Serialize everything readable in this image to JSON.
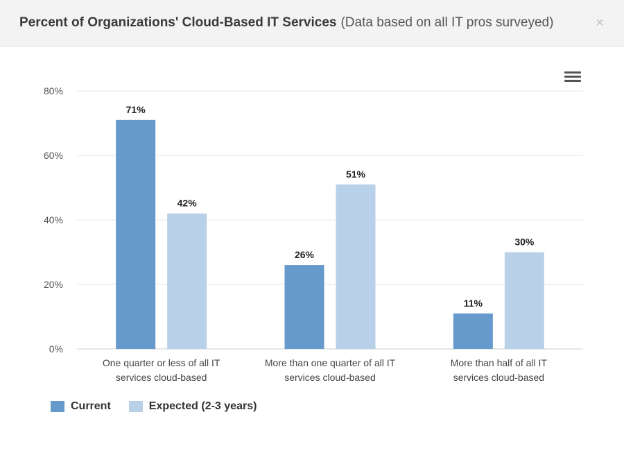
{
  "header": {
    "title": "Percent of Organizations' Cloud-Based IT Services",
    "subtitle": "(Data based on all IT pros surveyed)",
    "close_symbol": "×"
  },
  "icons": {
    "close": "close-icon",
    "menu": "hamburger-menu-icon"
  },
  "colors": {
    "current": "#6699cc",
    "expected": "#b9d1e8",
    "grid": "#e6e6e6",
    "axis": "#cccccc"
  },
  "chart_data": {
    "type": "bar",
    "categories": [
      [
        "One quarter or less of all IT",
        "services cloud-based"
      ],
      [
        "More than one quarter of all IT",
        "services cloud-based"
      ],
      [
        "More than half of all IT",
        "services cloud-based"
      ]
    ],
    "series": [
      {
        "name": "Current",
        "values": [
          71,
          26,
          11
        ],
        "labels": [
          "71%",
          "26%",
          "11%"
        ]
      },
      {
        "name": "Expected (2-3 years)",
        "values": [
          42,
          51,
          30
        ],
        "labels": [
          "42%",
          "51%",
          "30%"
        ]
      }
    ],
    "yticks": [
      "0%",
      "20%",
      "40%",
      "60%",
      "80%"
    ],
    "ytick_values": [
      0,
      20,
      40,
      60,
      80
    ],
    "ylim": [
      0,
      80
    ],
    "grid": true,
    "legend_position": "bottom-left"
  }
}
